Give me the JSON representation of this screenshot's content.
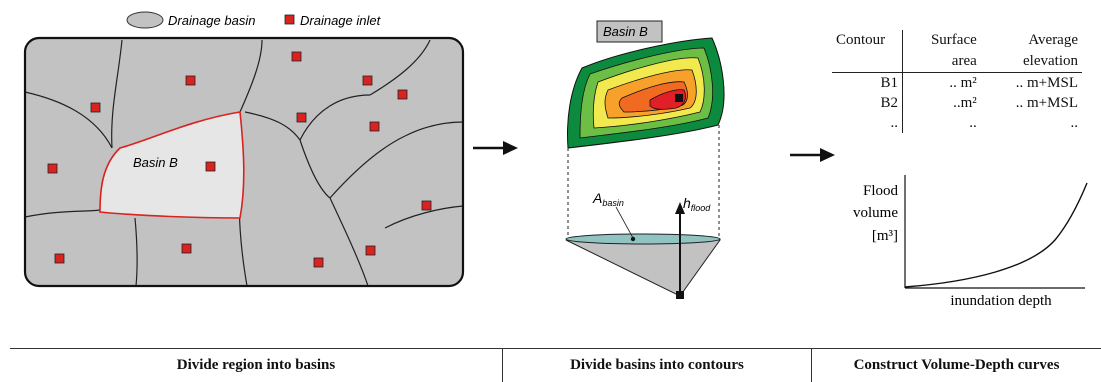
{
  "legend": {
    "basin_label": "Drainage basin",
    "inlet_label": "Drainage inlet"
  },
  "map": {
    "highlight_label": "Basin B"
  },
  "contours": {
    "title": "Basin B",
    "area_label_main": "A",
    "area_label_sub": "basin",
    "height_label_main": "h",
    "height_label_sub": "flood"
  },
  "table": {
    "headers": [
      [
        "Contour"
      ],
      [
        "Surface",
        "area"
      ],
      [
        "Average",
        "elevation"
      ]
    ],
    "rows": [
      [
        "B1",
        ".. m²",
        ".. m+MSL"
      ],
      [
        "B2",
        "..m²",
        ".. m+MSL"
      ],
      [
        "..",
        "..",
        ".."
      ]
    ]
  },
  "curve": {
    "ylabel_lines": [
      "Flood",
      "volume",
      "[m³]"
    ],
    "xlabel": "inundation depth"
  },
  "steps": [
    "Divide region into basins",
    "Divide basins into contours",
    "Construct Volume-Depth curves"
  ],
  "colors": {
    "basin_fill": "#c2c2c2",
    "highlight_fill": "#e6e6e6",
    "highlight_edge": "#d8231f",
    "inlet": "#d8231f",
    "water": "#8fc4c2"
  }
}
